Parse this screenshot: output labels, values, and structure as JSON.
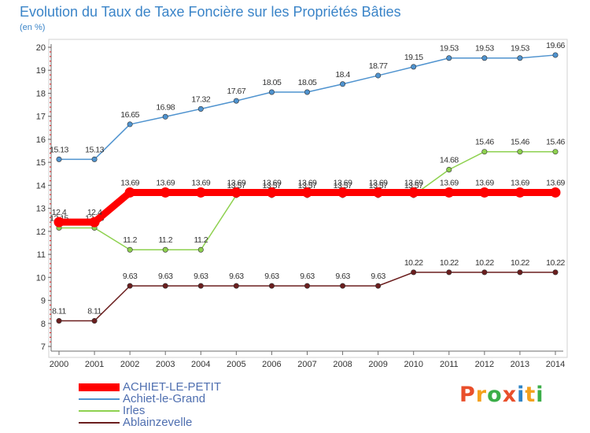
{
  "header": {
    "title": "Evolution du Taux de Taxe Foncière sur les Propriétés Bâties",
    "subtitle": "(en %)"
  },
  "brand": {
    "letters": [
      "P",
      "r",
      "o",
      "x",
      "i",
      "t",
      "i"
    ],
    "colors": [
      "#e94f2b",
      "#f4a11d",
      "#3cae49",
      "#e94f2b",
      "#2f84c6",
      "#f4a11d",
      "#3cae49"
    ]
  },
  "chart_data": {
    "type": "line",
    "title": "Evolution du Taux de Taxe Foncière sur les Propriétés Bâties",
    "ylabel": "(en %)",
    "xlabel": "",
    "categories": [
      "2000",
      "2001",
      "2002",
      "2003",
      "2004",
      "2005",
      "2006",
      "2007",
      "2008",
      "2009",
      "2010",
      "2011",
      "2012",
      "2013",
      "2014"
    ],
    "ylim": [
      7,
      20
    ],
    "yticks": [
      "7",
      "8",
      "9",
      "10",
      "11",
      "12",
      "13",
      "14",
      "15",
      "16",
      "17",
      "18",
      "19",
      "20"
    ],
    "grid": false,
    "legend_position": "bottom-left",
    "series": [
      {
        "name": "Ablainzevelle",
        "color": "#6b1e1e",
        "values": [
          8.11,
          8.11,
          9.63,
          9.63,
          9.63,
          9.63,
          9.63,
          9.63,
          9.63,
          9.63,
          10.22,
          10.22,
          10.22,
          10.22,
          10.22
        ],
        "labels": [
          "8.11",
          "8.11",
          "9.63",
          "9.63",
          "9.63",
          "9.63",
          "9.63",
          "9.63",
          "9.63",
          "9.63",
          "10.22",
          "10.22",
          "10.22",
          "10.22",
          "10.22"
        ]
      },
      {
        "name": "Irles",
        "color": "#8ed14f",
        "values": [
          12.15,
          12.15,
          11.2,
          11.2,
          11.2,
          13.57,
          13.57,
          13.57,
          13.57,
          13.57,
          13.57,
          14.68,
          15.46,
          15.46,
          15.46
        ],
        "labels": [
          "12.15",
          "12.15",
          "11.2",
          "11.2",
          "11.2",
          "13.57",
          "13.57",
          "13.57",
          "13.57",
          "13.57",
          "13.57",
          "14.68",
          "15.46",
          "15.46",
          "15.46"
        ]
      },
      {
        "name": "Achiet-le-Grand",
        "color": "#4f93cf",
        "values": [
          15.13,
          15.13,
          16.65,
          16.98,
          17.32,
          17.67,
          18.05,
          18.05,
          18.4,
          18.77,
          19.15,
          19.53,
          19.53,
          19.53,
          19.66
        ],
        "labels": [
          "15.13",
          "15.13",
          "16.65",
          "16.98",
          "17.32",
          "17.67",
          "18.05",
          "18.05",
          "18.4",
          "18.77",
          "19.15",
          "19.53",
          "19.53",
          "19.53",
          "19.66"
        ]
      },
      {
        "name": "ACHIET-LE-PETIT",
        "color": "#ff0000",
        "values": [
          12.4,
          12.4,
          13.69,
          13.69,
          13.69,
          13.69,
          13.69,
          13.69,
          13.69,
          13.69,
          13.69,
          13.69,
          13.69,
          13.69,
          13.69
        ],
        "labels": [
          "12.4",
          "12.4",
          "13.69",
          "13.69",
          "13.69",
          "13.69",
          "13.69",
          "13.69",
          "13.69",
          "13.69",
          "13.69",
          "13.69",
          "13.69",
          "13.69",
          "13.69"
        ]
      }
    ],
    "legend_order": [
      "ACHIET-LE-PETIT",
      "Achiet-le-Grand",
      "Irles",
      "Ablainzevelle"
    ]
  }
}
